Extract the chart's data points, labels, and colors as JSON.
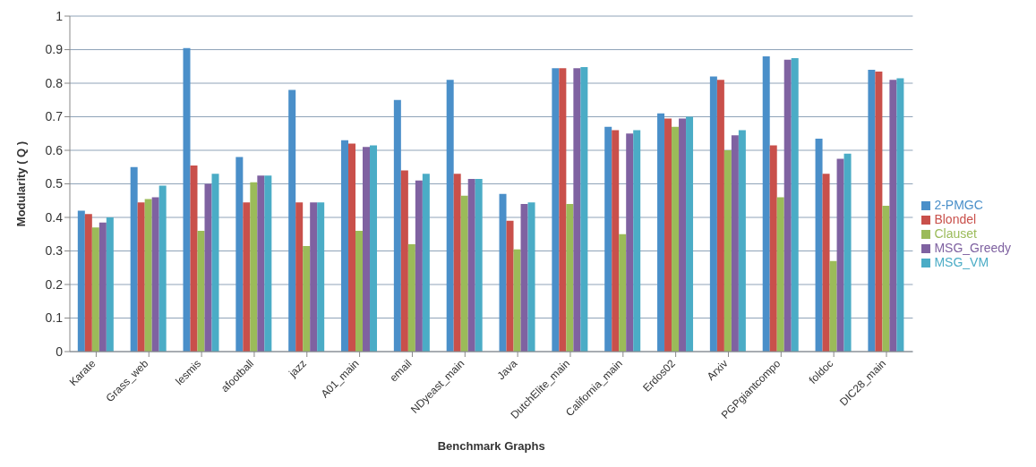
{
  "chart_data": {
    "type": "bar",
    "xlabel": "Benchmark Graphs",
    "ylabel": "Modularity ( Q )",
    "categories": [
      "Karate",
      "Grass_web",
      "lesmis",
      "afootball",
      "jazz",
      "A01_main",
      "email",
      "NDyeast_main",
      "Java",
      "DutchElite_main",
      "California_main",
      "Erdos02",
      "Arxiv",
      "PGPgiantcompo",
      "foldoc",
      "DIC28_main"
    ],
    "series": [
      {
        "name": "2-PMGC",
        "color": "#4a8fc9",
        "values": [
          0.42,
          0.55,
          0.905,
          0.58,
          0.78,
          0.63,
          0.75,
          0.81,
          0.47,
          0.845,
          0.67,
          0.71,
          0.82,
          0.88,
          0.635,
          0.84
        ]
      },
      {
        "name": "Blondel",
        "color": "#c9504b",
        "values": [
          0.41,
          0.445,
          0.555,
          0.445,
          0.445,
          0.62,
          0.54,
          0.53,
          0.39,
          0.845,
          0.66,
          0.695,
          0.81,
          0.615,
          0.53,
          0.835
        ]
      },
      {
        "name": "Clauset",
        "color": "#9bbb59",
        "values": [
          0.37,
          0.455,
          0.36,
          0.505,
          0.315,
          0.36,
          0.32,
          0.465,
          0.305,
          0.44,
          0.35,
          0.67,
          0.6,
          0.46,
          0.27,
          0.435
        ]
      },
      {
        "name": "MSG_Greedy",
        "color": "#7f62a1",
        "values": [
          0.385,
          0.46,
          0.5,
          0.525,
          0.445,
          0.61,
          0.51,
          0.515,
          0.44,
          0.845,
          0.65,
          0.695,
          0.645,
          0.87,
          0.575,
          0.81
        ]
      },
      {
        "name": "MSG_VM",
        "color": "#4bacc6",
        "values": [
          0.4,
          0.495,
          0.53,
          0.525,
          0.445,
          0.615,
          0.53,
          0.515,
          0.445,
          0.848,
          0.66,
          0.7,
          0.66,
          0.875,
          0.59,
          0.815
        ]
      }
    ],
    "ylim": [
      0,
      1
    ],
    "yticks": [
      0,
      0.1,
      0.2,
      0.3,
      0.4,
      0.5,
      0.6,
      0.7,
      0.8,
      0.9,
      1
    ],
    "grid": "y",
    "legend": "right"
  }
}
